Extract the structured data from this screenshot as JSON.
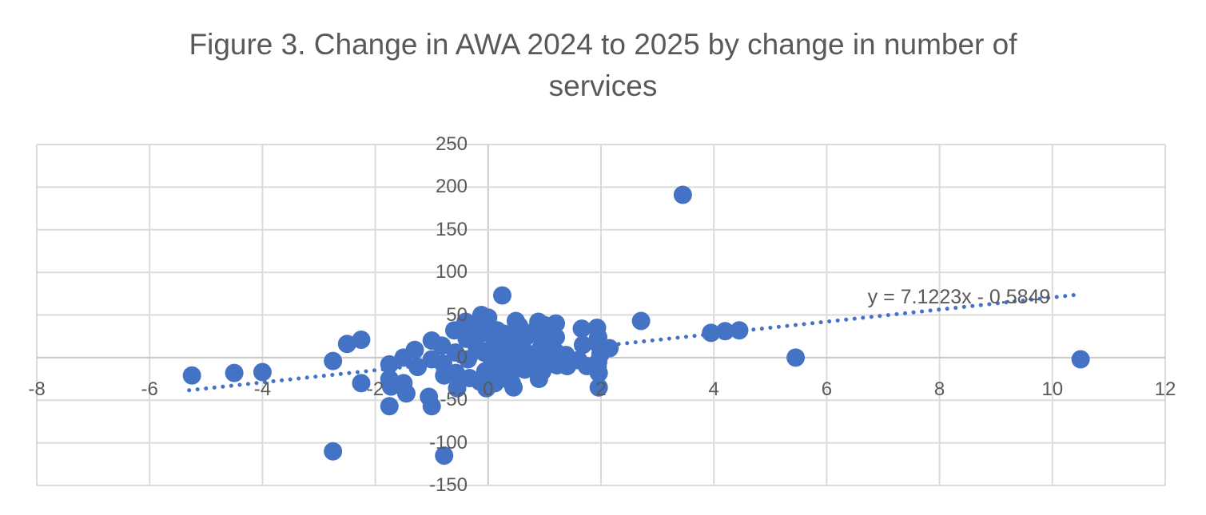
{
  "chart_data": {
    "type": "scatter",
    "title": "Figure 3. Change in AWA 2024 to 2025 by change in number of services",
    "xlabel": "",
    "ylabel": "",
    "grid": true,
    "legend": "none",
    "x_axis": {
      "min": -8,
      "max": 12,
      "tick_step": 2,
      "ticks": [
        -8,
        -6,
        -4,
        -2,
        0,
        2,
        4,
        6,
        8,
        10,
        12
      ]
    },
    "y_axis": {
      "min": -150,
      "max": 250,
      "tick_step": 50,
      "ticks": [
        -150,
        -100,
        -50,
        0,
        50,
        100,
        150,
        200,
        250
      ]
    },
    "points": [
      [
        -5.25,
        -21
      ],
      [
        -4.5,
        -18
      ],
      [
        -4.0,
        -17
      ],
      [
        -2.75,
        -4
      ],
      [
        -2.5,
        16
      ],
      [
        -2.25,
        21
      ],
      [
        -2.25,
        -30
      ],
      [
        -2.75,
        -110
      ],
      [
        -1.75,
        -8
      ],
      [
        -1.75,
        -25
      ],
      [
        -1.72,
        -34
      ],
      [
        -1.75,
        -57
      ],
      [
        -1.5,
        0
      ],
      [
        -1.5,
        -30
      ],
      [
        -1.45,
        -42
      ],
      [
        -1.3,
        9
      ],
      [
        -1.25,
        -11
      ],
      [
        -1.05,
        -46
      ],
      [
        -1.0,
        20
      ],
      [
        -1.0,
        -2
      ],
      [
        -1.0,
        -57
      ],
      [
        -0.82,
        14
      ],
      [
        -0.8,
        -7
      ],
      [
        -0.78,
        -21
      ],
      [
        -0.78,
        -115
      ],
      [
        -0.6,
        32
      ],
      [
        -0.58,
        6
      ],
      [
        -0.57,
        -18
      ],
      [
        -0.55,
        -36
      ],
      [
        -0.4,
        42
      ],
      [
        -0.38,
        22
      ],
      [
        -0.36,
        -2
      ],
      [
        -0.33,
        -24
      ],
      [
        -0.26,
        39
      ],
      [
        -0.2,
        12
      ],
      [
        -0.15,
        -28
      ],
      [
        -0.12,
        50
      ],
      [
        -0.1,
        29
      ],
      [
        -0.07,
        6
      ],
      [
        -0.05,
        -16
      ],
      [
        -0.03,
        -36
      ],
      [
        0.0,
        47
      ],
      [
        0.05,
        0
      ],
      [
        0.08,
        12
      ],
      [
        0.1,
        -5
      ],
      [
        0.12,
        -30
      ],
      [
        0.16,
        32
      ],
      [
        0.16,
        17
      ],
      [
        0.18,
        1
      ],
      [
        0.2,
        -11
      ],
      [
        0.2,
        -25
      ],
      [
        0.25,
        73
      ],
      [
        0.28,
        28
      ],
      [
        0.3,
        3
      ],
      [
        0.3,
        -15
      ],
      [
        0.37,
        22
      ],
      [
        0.39,
        6
      ],
      [
        0.4,
        -7
      ],
      [
        0.39,
        -21
      ],
      [
        0.42,
        -30
      ],
      [
        0.45,
        -35
      ],
      [
        0.49,
        43
      ],
      [
        0.52,
        30
      ],
      [
        0.55,
        37
      ],
      [
        0.6,
        14
      ],
      [
        0.63,
        -2
      ],
      [
        0.65,
        -14
      ],
      [
        0.68,
        25
      ],
      [
        0.72,
        4
      ],
      [
        0.74,
        -10
      ],
      [
        0.85,
        33
      ],
      [
        0.89,
        42
      ],
      [
        0.91,
        26
      ],
      [
        0.93,
        11
      ],
      [
        0.95,
        -4
      ],
      [
        0.96,
        -16
      ],
      [
        0.9,
        -25
      ],
      [
        1.0,
        38
      ],
      [
        1.0,
        22
      ],
      [
        1.05,
        0
      ],
      [
        1.2,
        40
      ],
      [
        1.2,
        24
      ],
      [
        1.21,
        6
      ],
      [
        1.22,
        -9
      ],
      [
        1.38,
        3
      ],
      [
        1.4,
        -10
      ],
      [
        1.6,
        -3
      ],
      [
        1.66,
        34
      ],
      [
        1.68,
        15
      ],
      [
        1.75,
        -10
      ],
      [
        1.93,
        35
      ],
      [
        1.95,
        24
      ],
      [
        1.97,
        14
      ],
      [
        1.99,
        4
      ],
      [
        1.95,
        -5
      ],
      [
        1.94,
        -11
      ],
      [
        1.96,
        -18
      ],
      [
        1.96,
        -35
      ],
      [
        2.15,
        11
      ],
      [
        2.71,
        43
      ],
      [
        3.45,
        191
      ],
      [
        3.95,
        29
      ],
      [
        4.2,
        31
      ],
      [
        4.45,
        32
      ],
      [
        5.45,
        0
      ],
      [
        10.5,
        -2
      ]
    ],
    "trendline": {
      "label": "y = 7.1223x - 0.5849",
      "slope": 7.1223,
      "intercept": -0.5849,
      "x_start": -5.3,
      "x_end": 10.45,
      "style": "dotted"
    },
    "colors": {
      "marker": "#4472C4",
      "trendline": "#4472C4",
      "gridline": "#DBDBDB",
      "zero_line": "#C8C8C8",
      "axis_text": "#595959",
      "title_text": "#595959"
    }
  }
}
